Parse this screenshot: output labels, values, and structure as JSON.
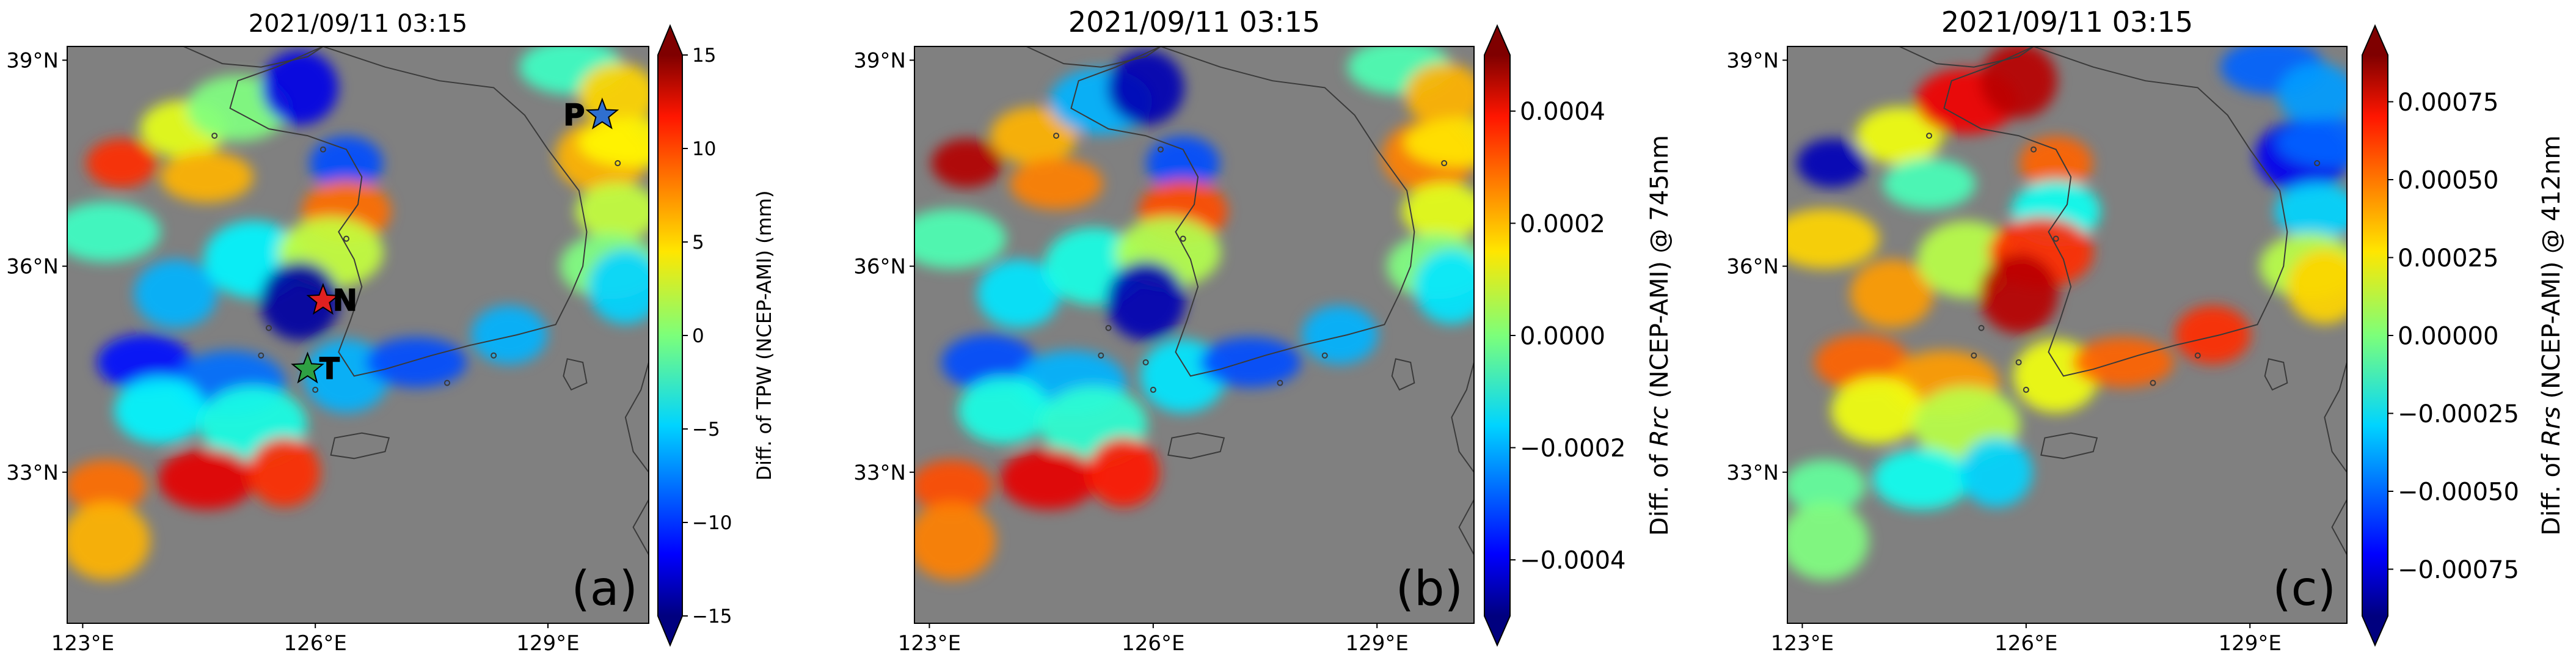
{
  "chart_data": [
    {
      "panel_label": "(a)",
      "type": "heatmap",
      "title": "2021/09/11 03:15",
      "colorbar": {
        "label": "Diff. of TPW (NCEP-AMI) (mm)",
        "label_parts": [
          "Diff. of TPW (NCEP-AMI) (mm)"
        ],
        "range": [
          -15,
          15
        ],
        "ticks": [
          "15",
          "10",
          "5",
          "0",
          "−5",
          "−10",
          "−15"
        ]
      },
      "xaxis_ticks": [
        "123°E",
        "126°E",
        "129°E"
      ],
      "yaxis_ticks": [
        "39°N",
        "36°N",
        "33°N"
      ],
      "lon_range": [
        122.8,
        130.3
      ],
      "lat_range": [
        30.8,
        39.2
      ],
      "markers": [
        {
          "label": "P",
          "lon": 129.7,
          "lat": 38.2,
          "star_color": "#2f6fd0",
          "label_color": "#1a4b8a"
        },
        {
          "label": "N",
          "lon": 126.1,
          "lat": 35.5,
          "star_color": "#e02020",
          "label_color": "#c81010"
        },
        {
          "label": "T",
          "lon": 125.9,
          "lat": 34.5,
          "star_color": "#2ea043",
          "label_color": "#2a7a30"
        }
      ],
      "regions": [
        {
          "lon": 123.5,
          "lat": 37.5,
          "value": 10
        },
        {
          "lon": 124.3,
          "lat": 38.0,
          "value": 3
        },
        {
          "lon": 125.0,
          "lat": 38.3,
          "value": 0
        },
        {
          "lon": 125.8,
          "lat": 38.6,
          "value": -12
        },
        {
          "lon": 124.6,
          "lat": 37.3,
          "value": 6
        },
        {
          "lon": 123.3,
          "lat": 36.5,
          "value": -2
        },
        {
          "lon": 124.2,
          "lat": 35.6,
          "value": -6
        },
        {
          "lon": 125.2,
          "lat": 36.1,
          "value": -4
        },
        {
          "lon": 126.4,
          "lat": 37.5,
          "value": -9
        },
        {
          "lon": 126.4,
          "lat": 36.8,
          "value": 8
        },
        {
          "lon": 126.2,
          "lat": 36.2,
          "value": 2
        },
        {
          "lon": 125.8,
          "lat": 35.5,
          "value": -14
        },
        {
          "lon": 123.8,
          "lat": 34.6,
          "value": -11
        },
        {
          "lon": 124.9,
          "lat": 34.3,
          "value": -8
        },
        {
          "lon": 126.4,
          "lat": 34.4,
          "value": -6
        },
        {
          "lon": 127.3,
          "lat": 34.6,
          "value": -9
        },
        {
          "lon": 128.5,
          "lat": 35.0,
          "value": -6
        },
        {
          "lon": 124.0,
          "lat": 33.9,
          "value": -4
        },
        {
          "lon": 125.2,
          "lat": 33.7,
          "value": -3
        },
        {
          "lon": 123.3,
          "lat": 32.8,
          "value": 8
        },
        {
          "lon": 124.6,
          "lat": 32.9,
          "value": 12
        },
        {
          "lon": 125.6,
          "lat": 33.0,
          "value": 10
        },
        {
          "lon": 123.3,
          "lat": 32.0,
          "value": 6
        },
        {
          "lon": 129.3,
          "lat": 38.9,
          "value": -2
        },
        {
          "lon": 129.9,
          "lat": 38.5,
          "value": 5
        },
        {
          "lon": 129.7,
          "lat": 37.6,
          "value": 6
        },
        {
          "lon": 130.1,
          "lat": 37.8,
          "value": 4
        },
        {
          "lon": 129.9,
          "lat": 36.8,
          "value": 2
        },
        {
          "lon": 129.8,
          "lat": 36.0,
          "value": 0
        },
        {
          "lon": 130.0,
          "lat": 35.7,
          "value": -5
        }
      ]
    },
    {
      "panel_label": "(b)",
      "type": "heatmap",
      "title": "2021/09/11 03:15",
      "colorbar": {
        "label": "Diff. of Rrc (NCEP-AMI) @ 745nm",
        "label_parts": [
          "Diff. of ",
          "Rrc",
          " (NCEP-AMI) @ 745nm"
        ],
        "range": [
          -0.0005,
          0.0005
        ],
        "ticks": [
          "0.0004",
          "0.0002",
          "0.0000",
          "−0.0002",
          "−0.0004"
        ]
      },
      "xaxis_ticks": [
        "123°E",
        "126°E",
        "129°E"
      ],
      "yaxis_ticks": [
        "39°N",
        "36°N",
        "33°N"
      ],
      "lon_range": [
        122.8,
        130.3
      ],
      "lat_range": [
        30.8,
        39.2
      ],
      "regions": [
        {
          "lon": 123.5,
          "lat": 37.5,
          "value": 0.00045
        },
        {
          "lon": 124.4,
          "lat": 37.9,
          "value": 0.0002
        },
        {
          "lon": 125.3,
          "lat": 38.4,
          "value": -0.0002
        },
        {
          "lon": 125.9,
          "lat": 38.6,
          "value": -0.00045
        },
        {
          "lon": 124.7,
          "lat": 37.2,
          "value": 0.00025
        },
        {
          "lon": 123.3,
          "lat": 36.4,
          "value": -5e-05
        },
        {
          "lon": 124.2,
          "lat": 35.6,
          "value": -0.00015
        },
        {
          "lon": 125.2,
          "lat": 36.0,
          "value": -0.0001
        },
        {
          "lon": 126.4,
          "lat": 37.5,
          "value": -0.0003
        },
        {
          "lon": 126.4,
          "lat": 36.8,
          "value": 0.0003
        },
        {
          "lon": 126.2,
          "lat": 36.2,
          "value": 5e-05
        },
        {
          "lon": 125.9,
          "lat": 35.5,
          "value": -0.00045
        },
        {
          "lon": 123.8,
          "lat": 34.6,
          "value": -0.0003
        },
        {
          "lon": 124.9,
          "lat": 34.3,
          "value": -0.0002
        },
        {
          "lon": 126.4,
          "lat": 34.4,
          "value": -0.00015
        },
        {
          "lon": 127.3,
          "lat": 34.6,
          "value": -0.0003
        },
        {
          "lon": 128.5,
          "lat": 35.0,
          "value": -0.0002
        },
        {
          "lon": 124.0,
          "lat": 33.9,
          "value": -0.0001
        },
        {
          "lon": 125.2,
          "lat": 33.7,
          "value": -8e-05
        },
        {
          "lon": 123.3,
          "lat": 32.8,
          "value": 0.0003
        },
        {
          "lon": 124.6,
          "lat": 32.9,
          "value": 0.0004
        },
        {
          "lon": 125.6,
          "lat": 33.0,
          "value": 0.00035
        },
        {
          "lon": 123.3,
          "lat": 32.0,
          "value": 0.00025
        },
        {
          "lon": 129.3,
          "lat": 38.9,
          "value": -5e-05
        },
        {
          "lon": 129.9,
          "lat": 38.5,
          "value": 0.0002
        },
        {
          "lon": 129.7,
          "lat": 37.6,
          "value": 0.00025
        },
        {
          "lon": 130.1,
          "lat": 37.8,
          "value": 0.00015
        },
        {
          "lon": 129.9,
          "lat": 36.8,
          "value": 0.0001
        },
        {
          "lon": 129.8,
          "lat": 36.0,
          "value": 0.0
        },
        {
          "lon": 130.0,
          "lat": 35.7,
          "value": -0.00015
        }
      ]
    },
    {
      "panel_label": "(c)",
      "type": "heatmap",
      "title": "2021/09/11 03:15",
      "colorbar": {
        "label": "Diff. of Rrs (NCEP-AMI) @ 412nm",
        "label_parts": [
          "Diff. of ",
          "Rrs",
          " (NCEP-AMI) @ 412nm"
        ],
        "range": [
          -0.0009,
          0.0009
        ],
        "ticks": [
          "0.00075",
          "0.00050",
          "0.00025",
          "0.00000",
          "−0.00025",
          "−0.00050",
          "−0.00075"
        ]
      },
      "xaxis_ticks": [
        "123°E",
        "126°E",
        "129°E"
      ],
      "yaxis_ticks": [
        "39°N",
        "36°N",
        "33°N"
      ],
      "lon_range": [
        122.8,
        130.3
      ],
      "lat_range": [
        30.8,
        39.2
      ],
      "regions": [
        {
          "lon": 123.4,
          "lat": 37.5,
          "value": -0.0008
        },
        {
          "lon": 124.3,
          "lat": 37.9,
          "value": 0.0002
        },
        {
          "lon": 125.2,
          "lat": 38.4,
          "value": 0.0007
        },
        {
          "lon": 125.9,
          "lat": 38.7,
          "value": 0.0008
        },
        {
          "lon": 124.7,
          "lat": 37.2,
          "value": -0.0001
        },
        {
          "lon": 123.3,
          "lat": 36.4,
          "value": 0.0003
        },
        {
          "lon": 124.2,
          "lat": 35.6,
          "value": 0.0004
        },
        {
          "lon": 125.2,
          "lat": 36.1,
          "value": 0.0001
        },
        {
          "lon": 126.4,
          "lat": 37.5,
          "value": 0.0005
        },
        {
          "lon": 126.4,
          "lat": 36.8,
          "value": -0.0002
        },
        {
          "lon": 126.2,
          "lat": 36.2,
          "value": 0.0006
        },
        {
          "lon": 125.9,
          "lat": 35.6,
          "value": 0.0008
        },
        {
          "lon": 123.8,
          "lat": 34.6,
          "value": 0.0005
        },
        {
          "lon": 124.9,
          "lat": 34.3,
          "value": 0.0004
        },
        {
          "lon": 126.4,
          "lat": 34.4,
          "value": 0.0002
        },
        {
          "lon": 127.3,
          "lat": 34.6,
          "value": 0.0005
        },
        {
          "lon": 128.5,
          "lat": 35.0,
          "value": 0.0006
        },
        {
          "lon": 124.0,
          "lat": 33.9,
          "value": 0.0002
        },
        {
          "lon": 125.2,
          "lat": 33.7,
          "value": 0.0001
        },
        {
          "lon": 123.3,
          "lat": 32.8,
          "value": -5e-05
        },
        {
          "lon": 124.6,
          "lat": 32.9,
          "value": -0.0002
        },
        {
          "lon": 125.6,
          "lat": 33.0,
          "value": -0.0003
        },
        {
          "lon": 123.3,
          "lat": 32.0,
          "value": 0.0
        },
        {
          "lon": 129.3,
          "lat": 38.9,
          "value": -0.0005
        },
        {
          "lon": 129.9,
          "lat": 38.5,
          "value": -0.0004
        },
        {
          "lon": 129.7,
          "lat": 37.6,
          "value": -0.0007
        },
        {
          "lon": 130.1,
          "lat": 37.8,
          "value": -0.0005
        },
        {
          "lon": 129.9,
          "lat": 36.8,
          "value": -0.0003
        },
        {
          "lon": 129.8,
          "lat": 36.0,
          "value": 0.0001
        },
        {
          "lon": 130.0,
          "lat": 35.7,
          "value": 0.0003
        }
      ]
    }
  ]
}
